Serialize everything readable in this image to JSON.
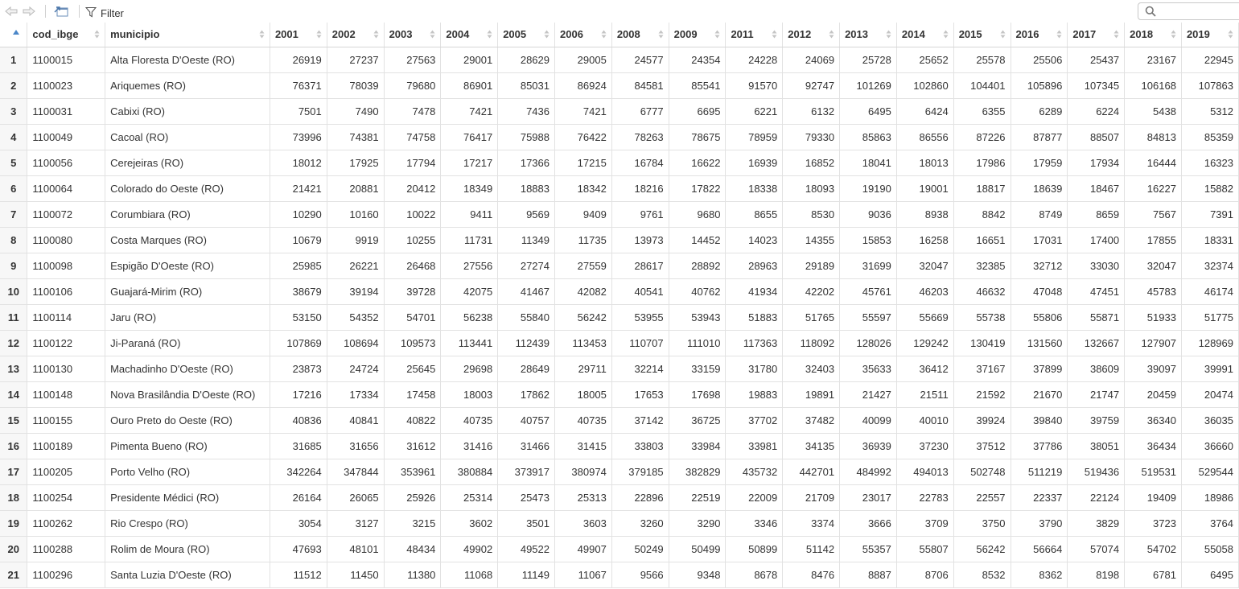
{
  "toolbar": {
    "filter_label": "Filter",
    "search_value": "",
    "icons": [
      "back-arrow-icon",
      "forward-arrow-icon",
      "popout-icon",
      "filter-icon",
      "search-icon"
    ]
  },
  "table": {
    "columns": [
      "cod_ibge",
      "municipio",
      "2001",
      "2002",
      "2003",
      "2004",
      "2005",
      "2006",
      "2008",
      "2009",
      "2011",
      "2012",
      "2013",
      "2014",
      "2015",
      "2016",
      "2017",
      "2018",
      "2019"
    ],
    "sort_indicator": "ascending",
    "rows": [
      [
        "1",
        "1100015",
        "Alta Floresta D'Oeste (RO)",
        "26919",
        "27237",
        "27563",
        "29001",
        "28629",
        "29005",
        "24577",
        "24354",
        "24228",
        "24069",
        "25728",
        "25652",
        "25578",
        "25506",
        "25437",
        "23167",
        "22945"
      ],
      [
        "2",
        "1100023",
        "Ariquemes (RO)",
        "76371",
        "78039",
        "79680",
        "86901",
        "85031",
        "86924",
        "84581",
        "85541",
        "91570",
        "92747",
        "101269",
        "102860",
        "104401",
        "105896",
        "107345",
        "106168",
        "107863"
      ],
      [
        "3",
        "1100031",
        "Cabixi (RO)",
        "7501",
        "7490",
        "7478",
        "7421",
        "7436",
        "7421",
        "6777",
        "6695",
        "6221",
        "6132",
        "6495",
        "6424",
        "6355",
        "6289",
        "6224",
        "5438",
        "5312"
      ],
      [
        "4",
        "1100049",
        "Cacoal (RO)",
        "73996",
        "74381",
        "74758",
        "76417",
        "75988",
        "76422",
        "78263",
        "78675",
        "78959",
        "79330",
        "85863",
        "86556",
        "87226",
        "87877",
        "88507",
        "84813",
        "85359"
      ],
      [
        "5",
        "1100056",
        "Cerejeiras (RO)",
        "18012",
        "17925",
        "17794",
        "17217",
        "17366",
        "17215",
        "16784",
        "16622",
        "16939",
        "16852",
        "18041",
        "18013",
        "17986",
        "17959",
        "17934",
        "16444",
        "16323"
      ],
      [
        "6",
        "1100064",
        "Colorado do Oeste (RO)",
        "21421",
        "20881",
        "20412",
        "18349",
        "18883",
        "18342",
        "18216",
        "17822",
        "18338",
        "18093",
        "19190",
        "19001",
        "18817",
        "18639",
        "18467",
        "16227",
        "15882"
      ],
      [
        "7",
        "1100072",
        "Corumbiara (RO)",
        "10290",
        "10160",
        "10022",
        "9411",
        "9569",
        "9409",
        "9761",
        "9680",
        "8655",
        "8530",
        "9036",
        "8938",
        "8842",
        "8749",
        "8659",
        "7567",
        "7391"
      ],
      [
        "8",
        "1100080",
        "Costa Marques (RO)",
        "10679",
        "9919",
        "10255",
        "11731",
        "11349",
        "11735",
        "13973",
        "14452",
        "14023",
        "14355",
        "15853",
        "16258",
        "16651",
        "17031",
        "17400",
        "17855",
        "18331"
      ],
      [
        "9",
        "1100098",
        "Espigão D'Oeste (RO)",
        "25985",
        "26221",
        "26468",
        "27556",
        "27274",
        "27559",
        "28617",
        "28892",
        "28963",
        "29189",
        "31699",
        "32047",
        "32385",
        "32712",
        "33030",
        "32047",
        "32374"
      ],
      [
        "10",
        "1100106",
        "Guajará-Mirim (RO)",
        "38679",
        "39194",
        "39728",
        "42075",
        "41467",
        "42082",
        "40541",
        "40762",
        "41934",
        "42202",
        "45761",
        "46203",
        "46632",
        "47048",
        "47451",
        "45783",
        "46174"
      ],
      [
        "11",
        "1100114",
        "Jaru (RO)",
        "53150",
        "54352",
        "54701",
        "56238",
        "55840",
        "56242",
        "53955",
        "53943",
        "51883",
        "51765",
        "55597",
        "55669",
        "55738",
        "55806",
        "55871",
        "51933",
        "51775"
      ],
      [
        "12",
        "1100122",
        "Ji-Paraná (RO)",
        "107869",
        "108694",
        "109573",
        "113441",
        "112439",
        "113453",
        "110707",
        "111010",
        "117363",
        "118092",
        "128026",
        "129242",
        "130419",
        "131560",
        "132667",
        "127907",
        "128969"
      ],
      [
        "13",
        "1100130",
        "Machadinho D'Oeste (RO)",
        "23873",
        "24724",
        "25645",
        "29698",
        "28649",
        "29711",
        "32214",
        "33159",
        "31780",
        "32403",
        "35633",
        "36412",
        "37167",
        "37899",
        "38609",
        "39097",
        "39991"
      ],
      [
        "14",
        "1100148",
        "Nova Brasilândia D'Oeste (RO)",
        "17216",
        "17334",
        "17458",
        "18003",
        "17862",
        "18005",
        "17653",
        "17698",
        "19883",
        "19891",
        "21427",
        "21511",
        "21592",
        "21670",
        "21747",
        "20459",
        "20474"
      ],
      [
        "15",
        "1100155",
        "Ouro Preto do Oeste (RO)",
        "40836",
        "40841",
        "40822",
        "40735",
        "40757",
        "40735",
        "37142",
        "36725",
        "37702",
        "37482",
        "40099",
        "40010",
        "39924",
        "39840",
        "39759",
        "36340",
        "36035"
      ],
      [
        "16",
        "1100189",
        "Pimenta Bueno (RO)",
        "31685",
        "31656",
        "31612",
        "31416",
        "31466",
        "31415",
        "33803",
        "33984",
        "33981",
        "34135",
        "36939",
        "37230",
        "37512",
        "37786",
        "38051",
        "36434",
        "36660"
      ],
      [
        "17",
        "1100205",
        "Porto Velho (RO)",
        "342264",
        "347844",
        "353961",
        "380884",
        "373917",
        "380974",
        "379185",
        "382829",
        "435732",
        "442701",
        "484992",
        "494013",
        "502748",
        "511219",
        "519436",
        "519531",
        "529544"
      ],
      [
        "18",
        "1100254",
        "Presidente Médici (RO)",
        "26164",
        "26065",
        "25926",
        "25314",
        "25473",
        "25313",
        "22896",
        "22519",
        "22009",
        "21709",
        "23017",
        "22783",
        "22557",
        "22337",
        "22124",
        "19409",
        "18986"
      ],
      [
        "19",
        "1100262",
        "Rio Crespo (RO)",
        "3054",
        "3127",
        "3215",
        "3602",
        "3501",
        "3603",
        "3260",
        "3290",
        "3346",
        "3374",
        "3666",
        "3709",
        "3750",
        "3790",
        "3829",
        "3723",
        "3764"
      ],
      [
        "20",
        "1100288",
        "Rolim de Moura (RO)",
        "47693",
        "48101",
        "48434",
        "49902",
        "49522",
        "49907",
        "50249",
        "50499",
        "50899",
        "51142",
        "55357",
        "55807",
        "56242",
        "56664",
        "57074",
        "54702",
        "55058"
      ],
      [
        "21",
        "1100296",
        "Santa Luzia D'Oeste (RO)",
        "11512",
        "11450",
        "11380",
        "11068",
        "11149",
        "11067",
        "9566",
        "9348",
        "8678",
        "8476",
        "8887",
        "8706",
        "8532",
        "8362",
        "8198",
        "6781",
        "6495"
      ]
    ]
  }
}
